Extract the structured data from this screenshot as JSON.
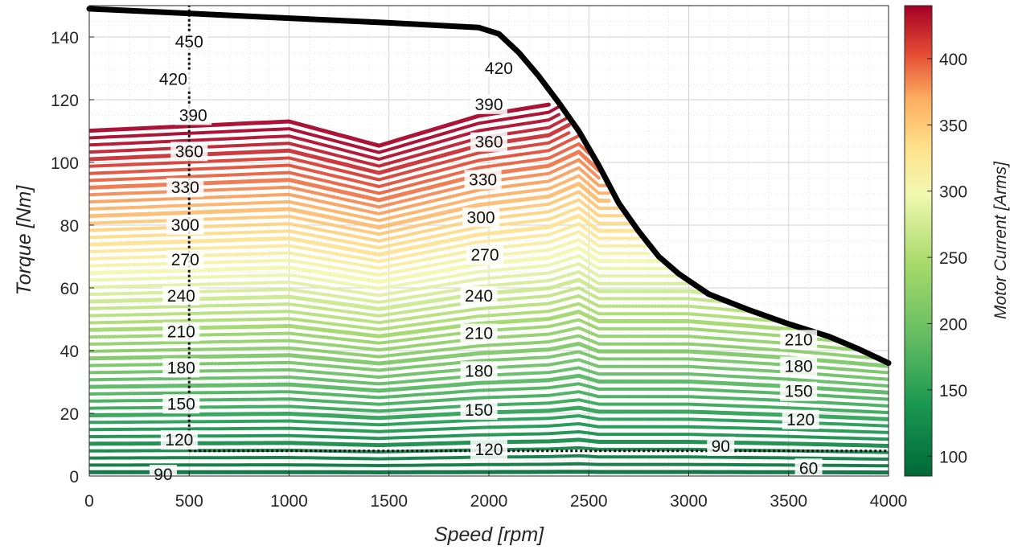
{
  "chart_data": {
    "type": "contour",
    "xlabel": "Speed [rpm]",
    "ylabel": "Torque [Nm]",
    "xlim": [
      0,
      4000
    ],
    "ylim": [
      0,
      150
    ],
    "xticks": [
      0,
      500,
      1000,
      1500,
      2000,
      2500,
      3000,
      3500,
      4000
    ],
    "yticks": [
      0,
      20,
      40,
      60,
      80,
      100,
      120,
      140
    ],
    "grid": true,
    "minor_grid": true,
    "colorbar": {
      "label": "Motor Current [Arms]",
      "range": [
        85,
        440
      ],
      "ticks": [
        100,
        150,
        200,
        250,
        300,
        350,
        400
      ],
      "colormap": "red-yellow-green (high = red, low = green)"
    },
    "contour_levels": [
      60,
      90,
      120,
      150,
      180,
      210,
      240,
      270,
      300,
      330,
      360,
      390,
      420,
      450
    ],
    "contour_label_texts": [
      "450",
      "420",
      "390",
      "360",
      "330",
      "300",
      "270",
      "240",
      "210",
      "180",
      "150",
      "120",
      "90",
      "60"
    ],
    "max_torque_envelope": {
      "x": [
        0,
        1000,
        1500,
        1950,
        2050,
        2150,
        2250,
        2350,
        2450,
        2550,
        2650,
        2750,
        2850,
        2950,
        3100,
        3300,
        3500,
        3700,
        3850,
        4000
      ],
      "y": [
        149,
        146,
        144.5,
        143,
        141,
        135,
        127.5,
        119,
        110,
        99,
        87,
        78,
        70,
        64.5,
        58,
        53,
        48.5,
        44.5,
        40.5,
        36
      ]
    },
    "reference_lines": [
      {
        "type": "vertical",
        "x": 500,
        "y_range": [
          8,
          150
        ],
        "style": "dotted"
      },
      {
        "type": "horizontal",
        "y": 8,
        "x_range": [
          500,
          4000
        ],
        "style": "dotted"
      }
    ]
  }
}
